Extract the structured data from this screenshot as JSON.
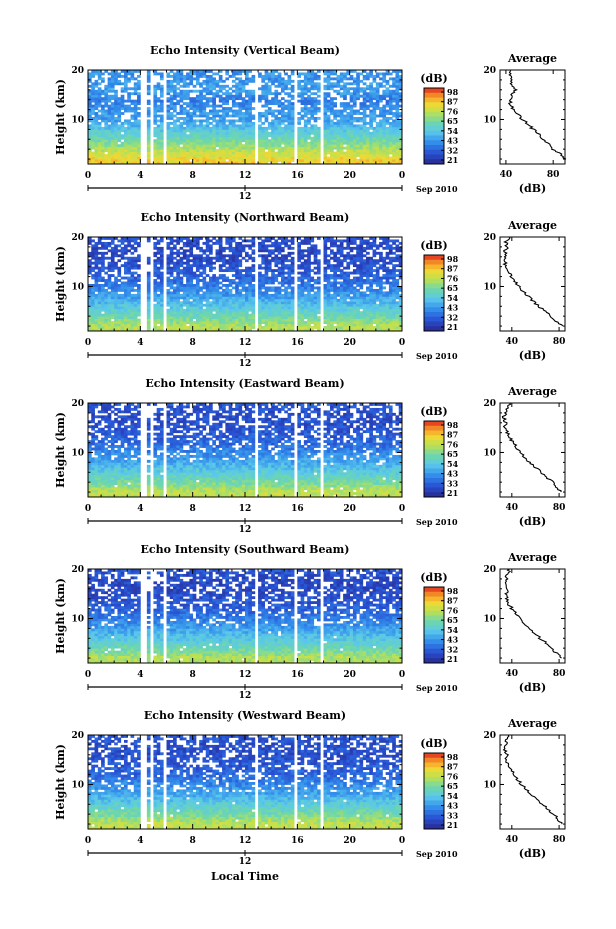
{
  "figure": {
    "xlabel": "Local Time",
    "date_label": "Sep 2010",
    "date_tick": "12",
    "average_title": "Average",
    "average_xlabel": "(dB)",
    "colorbar_unit": "(dB)"
  },
  "chart_data": [
    {
      "type": "heatmap",
      "title": "Echo Intensity (Vertical Beam)",
      "ylabel": "Height (km)",
      "xlabel": "Local Time",
      "x_ticks": [
        "0",
        "4",
        "8",
        "12",
        "16",
        "20",
        "0"
      ],
      "xlim": [
        0,
        24
      ],
      "y_ticks": [
        "10",
        "20"
      ],
      "ylim": [
        1,
        20
      ],
      "colorbar": {
        "label": "(dB)",
        "ticks": [
          "98",
          "87",
          "76",
          "65",
          "54",
          "43",
          "32",
          "21"
        ],
        "range": [
          21,
          98
        ]
      },
      "data_gaps_hours": [
        [
          4.0,
          4.4
        ],
        [
          4.7,
          4.9
        ],
        [
          5.6,
          5.9
        ],
        [
          12.7,
          13.0
        ],
        [
          15.6,
          15.9
        ],
        [
          17.6,
          17.9
        ]
      ],
      "profile_min_db_by_height": [
        [
          2,
          82
        ],
        [
          4,
          72
        ],
        [
          6,
          62
        ],
        [
          8,
          54
        ],
        [
          10,
          46
        ],
        [
          12,
          44
        ],
        [
          14,
          40
        ],
        [
          16,
          46
        ],
        [
          18,
          44
        ],
        [
          20,
          44
        ]
      ],
      "average": {
        "title": "Average",
        "xlabel": "(dB)",
        "x_ticks": [
          "40",
          "80"
        ],
        "xlim": [
          35,
          90
        ],
        "y_ticks": [
          "10",
          "20"
        ],
        "heights_km": [
          2,
          3,
          4,
          5,
          6,
          7,
          8,
          9,
          10,
          11,
          12,
          13,
          14,
          15,
          16,
          17,
          18,
          19,
          20
        ],
        "values_db": [
          90,
          86,
          80,
          76,
          72,
          68,
          63,
          59,
          54,
          50,
          46,
          44,
          43,
          45,
          48,
          44,
          46,
          43,
          44
        ]
      }
    },
    {
      "type": "heatmap",
      "title": "Echo Intensity (Northward Beam)",
      "ylabel": "Height (km)",
      "xlabel": "Local Time",
      "x_ticks": [
        "0",
        "4",
        "8",
        "12",
        "16",
        "20",
        "0"
      ],
      "xlim": [
        0,
        24
      ],
      "y_ticks": [
        "10",
        "20"
      ],
      "ylim": [
        1,
        20
      ],
      "colorbar": {
        "label": "(dB)",
        "ticks": [
          "98",
          "87",
          "76",
          "65",
          "54",
          "43",
          "32",
          "21"
        ],
        "range": [
          21,
          98
        ]
      },
      "data_gaps_hours": [
        [
          4.0,
          4.4
        ],
        [
          4.7,
          4.9
        ],
        [
          5.6,
          5.9
        ],
        [
          12.7,
          13.0
        ],
        [
          15.6,
          15.9
        ],
        [
          17.6,
          17.9
        ]
      ],
      "profile_min_db_by_height": [
        [
          2,
          72
        ],
        [
          4,
          62
        ],
        [
          6,
          54
        ],
        [
          8,
          46
        ],
        [
          10,
          40
        ],
        [
          12,
          35
        ],
        [
          14,
          32
        ],
        [
          16,
          30
        ],
        [
          18,
          30
        ],
        [
          20,
          32
        ]
      ],
      "average": {
        "title": "Average",
        "xlabel": "(dB)",
        "x_ticks": [
          "40",
          "80"
        ],
        "xlim": [
          30,
          85
        ],
        "y_ticks": [
          "10",
          "20"
        ],
        "heights_km": [
          2,
          3,
          4,
          5,
          6,
          7,
          8,
          9,
          10,
          11,
          12,
          13,
          14,
          15,
          16,
          17,
          18,
          19,
          20
        ],
        "values_db": [
          82,
          78,
          73,
          68,
          63,
          58,
          54,
          49,
          46,
          43,
          40,
          37,
          35,
          34,
          35,
          34,
          36,
          35,
          38
        ]
      }
    },
    {
      "type": "heatmap",
      "title": "Echo Intensity (Eastward Beam)",
      "ylabel": "Height (km)",
      "xlabel": "Local Time",
      "x_ticks": [
        "0",
        "4",
        "8",
        "12",
        "16",
        "20",
        "0"
      ],
      "xlim": [
        0,
        24
      ],
      "y_ticks": [
        "10",
        "20"
      ],
      "ylim": [
        1,
        20
      ],
      "colorbar": {
        "label": "(dB)",
        "ticks": [
          "98",
          "87",
          "76",
          "65",
          "54",
          "43",
          "33",
          "21"
        ],
        "range": [
          21,
          98
        ]
      },
      "data_gaps_hours": [
        [
          4.0,
          4.4
        ],
        [
          4.7,
          4.9
        ],
        [
          5.6,
          5.9
        ],
        [
          12.7,
          13.0
        ],
        [
          15.6,
          15.9
        ],
        [
          17.6,
          17.9
        ]
      ],
      "profile_min_db_by_height": [
        [
          2,
          74
        ],
        [
          4,
          64
        ],
        [
          6,
          56
        ],
        [
          8,
          48
        ],
        [
          10,
          42
        ],
        [
          12,
          36
        ],
        [
          14,
          33
        ],
        [
          16,
          31
        ],
        [
          18,
          31
        ],
        [
          20,
          33
        ]
      ],
      "average": {
        "title": "Average",
        "xlabel": "(dB)",
        "x_ticks": [
          "40",
          "80"
        ],
        "xlim": [
          30,
          85
        ],
        "y_ticks": [
          "10",
          "20"
        ],
        "heights_km": [
          2,
          3,
          4,
          5,
          6,
          7,
          8,
          9,
          10,
          11,
          12,
          13,
          14,
          15,
          16,
          17,
          18,
          19,
          20
        ],
        "values_db": [
          82,
          78,
          74,
          70,
          65,
          60,
          55,
          51,
          47,
          44,
          41,
          38,
          36,
          34,
          35,
          33,
          35,
          36,
          38
        ]
      }
    },
    {
      "type": "heatmap",
      "title": "Echo Intensity (Southward Beam)",
      "ylabel": "Height (km)",
      "xlabel": "Local Time",
      "x_ticks": [
        "0",
        "4",
        "8",
        "12",
        "16",
        "20",
        "0"
      ],
      "xlim": [
        0,
        24
      ],
      "y_ticks": [
        "10",
        "20"
      ],
      "ylim": [
        1,
        20
      ],
      "colorbar": {
        "label": "(dB)",
        "ticks": [
          "98",
          "87",
          "76",
          "65",
          "54",
          "43",
          "32",
          "21"
        ],
        "range": [
          21,
          98
        ]
      },
      "data_gaps_hours": [
        [
          4.0,
          4.4
        ],
        [
          4.7,
          4.9
        ],
        [
          5.6,
          5.9
        ],
        [
          12.7,
          13.0
        ],
        [
          15.6,
          15.9
        ],
        [
          17.6,
          17.9
        ]
      ],
      "profile_min_db_by_height": [
        [
          2,
          72
        ],
        [
          4,
          62
        ],
        [
          6,
          54
        ],
        [
          8,
          46
        ],
        [
          10,
          40
        ],
        [
          12,
          35
        ],
        [
          14,
          32
        ],
        [
          16,
          30
        ],
        [
          18,
          30
        ],
        [
          20,
          33
        ]
      ],
      "average": {
        "title": "Average",
        "xlabel": "(dB)",
        "x_ticks": [
          "40",
          "80"
        ],
        "xlim": [
          30,
          85
        ],
        "y_ticks": [
          "10",
          "20"
        ],
        "heights_km": [
          2,
          3,
          4,
          5,
          6,
          7,
          8,
          9,
          10,
          11,
          12,
          13,
          14,
          15,
          16,
          17,
          18,
          19,
          20
        ],
        "values_db": [
          82,
          78,
          73,
          69,
          64,
          59,
          55,
          50,
          46,
          43,
          40,
          37,
          36,
          35,
          36,
          34,
          35,
          36,
          38
        ]
      }
    },
    {
      "type": "heatmap",
      "title": "Echo Intensity (Westward Beam)",
      "ylabel": "Height (km)",
      "xlabel": "Local Time",
      "x_ticks": [
        "0",
        "4",
        "8",
        "12",
        "16",
        "20",
        "0"
      ],
      "xlim": [
        0,
        24
      ],
      "y_ticks": [
        "10",
        "20"
      ],
      "ylim": [
        1,
        20
      ],
      "colorbar": {
        "label": "(dB)",
        "ticks": [
          "98",
          "87",
          "76",
          "65",
          "54",
          "43",
          "33",
          "21"
        ],
        "range": [
          21,
          98
        ]
      },
      "data_gaps_hours": [
        [
          4.0,
          4.4
        ],
        [
          4.7,
          4.9
        ],
        [
          5.6,
          5.9
        ],
        [
          12.7,
          13.0
        ],
        [
          15.6,
          15.9
        ],
        [
          17.6,
          17.9
        ]
      ],
      "profile_min_db_by_height": [
        [
          2,
          74
        ],
        [
          4,
          64
        ],
        [
          6,
          56
        ],
        [
          8,
          48
        ],
        [
          10,
          42
        ],
        [
          12,
          36
        ],
        [
          14,
          33
        ],
        [
          16,
          31
        ],
        [
          18,
          31
        ],
        [
          20,
          33
        ]
      ],
      "average": {
        "title": "Average",
        "xlabel": "(dB)",
        "x_ticks": [
          "40",
          "80"
        ],
        "xlim": [
          30,
          85
        ],
        "y_ticks": [
          "10",
          "20"
        ],
        "heights_km": [
          2,
          3,
          4,
          5,
          6,
          7,
          8,
          9,
          10,
          11,
          12,
          13,
          14,
          15,
          16,
          17,
          18,
          19,
          20
        ],
        "values_db": [
          82,
          79,
          75,
          70,
          66,
          61,
          57,
          52,
          48,
          45,
          42,
          39,
          37,
          35,
          36,
          34,
          35,
          36,
          37
        ]
      }
    }
  ]
}
